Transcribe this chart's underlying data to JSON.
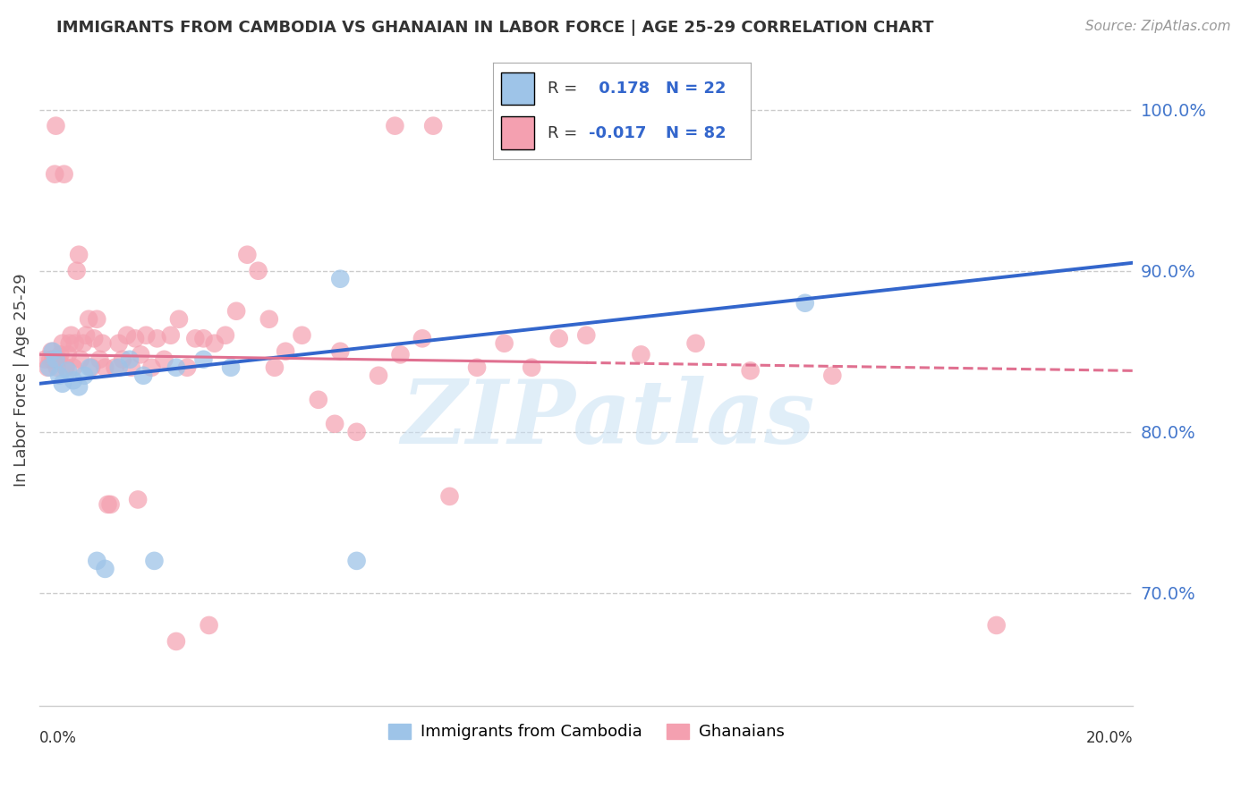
{
  "title": "IMMIGRANTS FROM CAMBODIA VS GHANAIAN IN LABOR FORCE | AGE 25-29 CORRELATION CHART",
  "source": "Source: ZipAtlas.com",
  "ylabel": "In Labor Force | Age 25-29",
  "right_yticks": [
    "100.0%",
    "90.0%",
    "80.0%",
    "70.0%"
  ],
  "right_ytick_vals": [
    100.0,
    90.0,
    80.0,
    70.0
  ],
  "xlim": [
    0.0,
    20.0
  ],
  "ylim": [
    63.0,
    103.5
  ],
  "xtick_labels": [
    "0.0%",
    "20.0%"
  ],
  "xtick_positions": [
    0.0,
    20.0
  ],
  "cambodia_color": "#9ec4e8",
  "ghana_color": "#f4a0b0",
  "cambodia_line_color": "#3366cc",
  "ghana_line_color": "#e07090",
  "watermark_text": "ZIPatlas",
  "background_color": "#ffffff",
  "grid_color": "#cccccc",
  "legend_r1": "R =",
  "legend_v1": " 0.178",
  "legend_n1": "N = 22",
  "legend_r2": "R =",
  "legend_v2": "-0.017",
  "legend_n2": "N = 82",
  "cambodia_x": [
    0.18,
    0.24,
    0.3,
    0.36,
    0.42,
    0.52,
    0.62,
    0.72,
    0.82,
    0.92,
    1.05,
    1.2,
    1.45,
    1.65,
    1.9,
    2.1,
    2.5,
    3.0,
    3.5,
    5.5,
    5.8,
    14.0
  ],
  "cambodia_y": [
    84.0,
    85.0,
    84.5,
    83.5,
    83.0,
    83.8,
    83.2,
    82.8,
    83.5,
    84.0,
    72.0,
    71.5,
    84.0,
    84.5,
    83.5,
    72.0,
    84.0,
    84.5,
    84.0,
    89.5,
    72.0,
    88.0
  ],
  "ghana_x": [
    0.1,
    0.15,
    0.2,
    0.22,
    0.25,
    0.28,
    0.3,
    0.32,
    0.35,
    0.38,
    0.42,
    0.45,
    0.48,
    0.52,
    0.55,
    0.58,
    0.62,
    0.65,
    0.68,
    0.72,
    0.75,
    0.8,
    0.85,
    0.9,
    0.95,
    1.0,
    1.05,
    1.1,
    1.15,
    1.2,
    1.25,
    1.3,
    1.38,
    1.45,
    1.52,
    1.6,
    1.68,
    1.75,
    1.85,
    1.95,
    2.05,
    2.15,
    2.28,
    2.4,
    2.55,
    2.7,
    2.85,
    3.0,
    3.2,
    3.4,
    3.6,
    3.8,
    4.0,
    4.2,
    4.5,
    4.8,
    5.1,
    5.4,
    5.8,
    6.2,
    6.6,
    7.0,
    7.5,
    8.0,
    8.5,
    9.0,
    9.5,
    10.0,
    11.0,
    12.0,
    13.0,
    14.5,
    11.5,
    8.8,
    7.2,
    6.5,
    5.5,
    4.3,
    3.1,
    2.5,
    1.8,
    17.5
  ],
  "ghana_y": [
    84.5,
    84.0,
    84.5,
    85.0,
    84.5,
    96.0,
    99.0,
    84.0,
    84.5,
    84.8,
    85.5,
    96.0,
    84.0,
    84.8,
    85.5,
    86.0,
    84.0,
    85.5,
    90.0,
    91.0,
    84.5,
    85.5,
    86.0,
    87.0,
    84.0,
    85.8,
    87.0,
    84.5,
    85.5,
    84.0,
    75.5,
    75.5,
    84.0,
    85.5,
    84.5,
    86.0,
    84.0,
    85.8,
    84.8,
    86.0,
    84.0,
    85.8,
    84.5,
    86.0,
    87.0,
    84.0,
    85.8,
    85.8,
    85.5,
    86.0,
    87.5,
    91.0,
    90.0,
    87.0,
    85.0,
    86.0,
    82.0,
    80.5,
    80.0,
    83.5,
    84.8,
    85.8,
    76.0,
    84.0,
    85.5,
    84.0,
    85.8,
    86.0,
    84.8,
    85.5,
    83.8,
    83.5,
    99.0,
    99.0,
    99.0,
    99.0,
    85.0,
    84.0,
    68.0,
    67.0,
    75.8,
    68.0
  ]
}
